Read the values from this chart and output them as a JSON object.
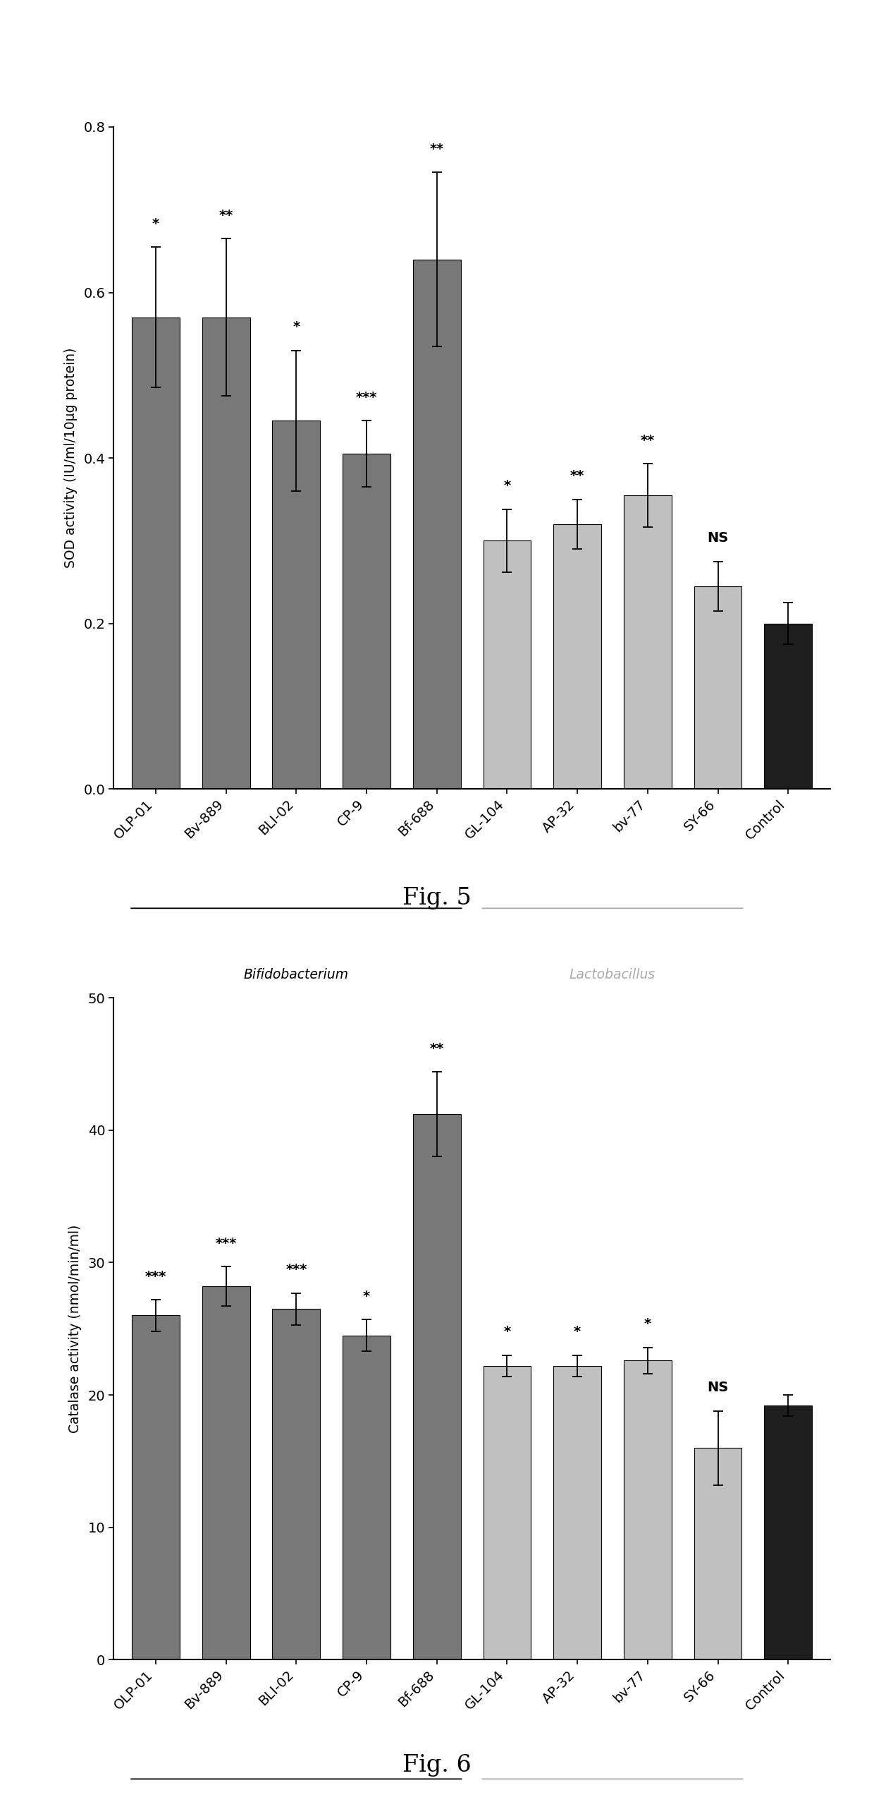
{
  "fig5": {
    "categories": [
      "OLP-01",
      "Bv-889",
      "BLI-02",
      "CP-9",
      "Bf-688",
      "GL-104",
      "AP-32",
      "bv-77",
      "SY-66",
      "Control"
    ],
    "values": [
      0.57,
      0.57,
      0.445,
      0.405,
      0.64,
      0.3,
      0.32,
      0.355,
      0.245,
      0.2
    ],
    "errors": [
      0.085,
      0.095,
      0.085,
      0.04,
      0.105,
      0.038,
      0.03,
      0.038,
      0.03,
      0.025
    ],
    "significance": [
      "*",
      "**",
      "*",
      "***",
      "**",
      "*",
      "**",
      "**",
      "NS",
      ""
    ],
    "colors": [
      "#787878",
      "#787878",
      "#787878",
      "#787878",
      "#787878",
      "#c0c0c0",
      "#c0c0c0",
      "#c0c0c0",
      "#c0c0c0",
      "#1e1e1e"
    ],
    "ylabel": "SOD activity (IU/ml/10μg protein)",
    "ylim": [
      0.0,
      0.8
    ],
    "yticks": [
      0.0,
      0.2,
      0.4,
      0.6,
      0.8
    ],
    "title": "Fig. 5",
    "bifidobacterium_range": [
      0,
      4
    ],
    "lactobacillus_range": [
      5,
      8
    ]
  },
  "fig6": {
    "categories": [
      "OLP-01",
      "Bv-889",
      "BLI-02",
      "CP-9",
      "Bf-688",
      "GL-104",
      "AP-32",
      "bv-77",
      "SY-66",
      "Control"
    ],
    "values": [
      26.0,
      28.2,
      26.5,
      24.5,
      41.2,
      22.2,
      22.2,
      22.6,
      16.0,
      19.2
    ],
    "errors": [
      1.2,
      1.5,
      1.2,
      1.2,
      3.2,
      0.8,
      0.8,
      1.0,
      2.8,
      0.8
    ],
    "significance": [
      "***",
      "***",
      "***",
      "*",
      "**",
      "*",
      "*",
      "*",
      "NS",
      ""
    ],
    "colors": [
      "#787878",
      "#787878",
      "#787878",
      "#787878",
      "#787878",
      "#c0c0c0",
      "#c0c0c0",
      "#c0c0c0",
      "#c0c0c0",
      "#1e1e1e"
    ],
    "ylabel": "Catalase activity (nmol/min/ml)",
    "ylim": [
      0,
      50
    ],
    "yticks": [
      0,
      10,
      20,
      30,
      40,
      50
    ],
    "title": "Fig. 6",
    "bifidobacterium_range": [
      0,
      4
    ],
    "lactobacillus_range": [
      5,
      8
    ]
  },
  "bar_width": 0.68,
  "background_color": "#ffffff",
  "text_color": "#000000",
  "bifido_color": "#555555",
  "lacto_color": "#999999"
}
